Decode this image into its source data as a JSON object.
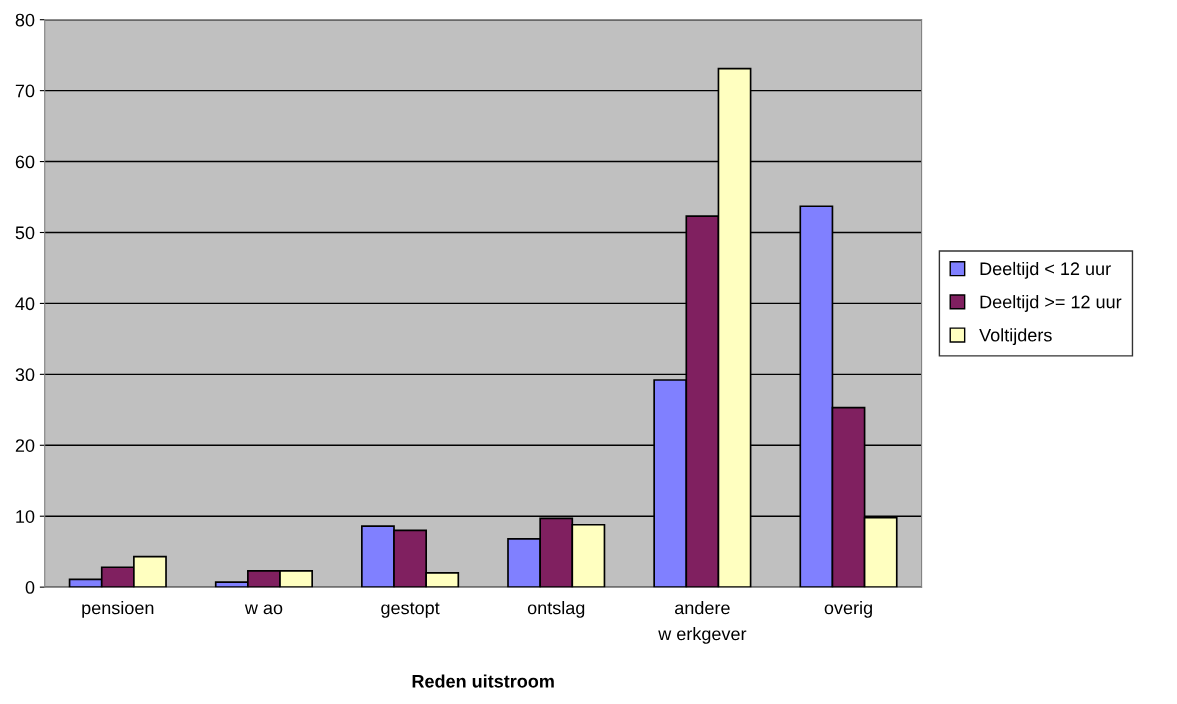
{
  "chart_data": {
    "type": "bar",
    "xlabel": "Reden uitstroom",
    "categories": [
      "pensioen",
      "w ao",
      "gestopt",
      "ontslag",
      "andere\nw erkgever",
      "overig"
    ],
    "series": [
      {
        "name": "Deeltijd < 12 uur",
        "color": "#8080ff",
        "values": [
          1.1,
          0.7,
          8.6,
          6.8,
          29.2,
          53.7
        ]
      },
      {
        "name": "Deeltijd >= 12 uur",
        "color": "#802060",
        "values": [
          2.8,
          2.3,
          8.0,
          9.7,
          52.3,
          25.3
        ]
      },
      {
        "name": "Voltijders",
        "color": "#ffffc0",
        "values": [
          4.3,
          2.3,
          2.0,
          8.8,
          73.1,
          9.8
        ]
      }
    ],
    "ylim": [
      0,
      80
    ],
    "yticks": [
      0,
      10,
      20,
      30,
      40,
      50,
      60,
      70,
      80
    ],
    "grid": "y",
    "legend": "right"
  }
}
